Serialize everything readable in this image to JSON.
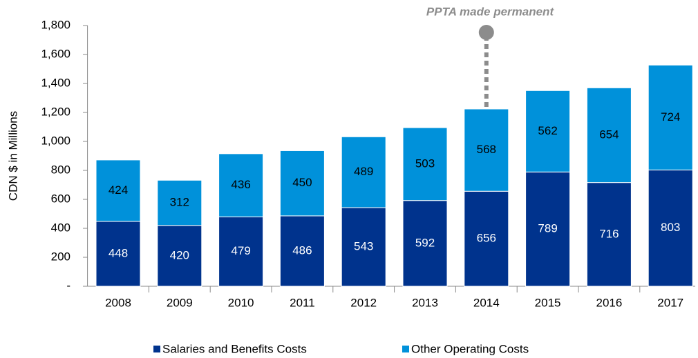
{
  "chart_data": {
    "type": "stacked_bar",
    "annotation": "PPTA made permanent",
    "y_label": "CDN $ in Millions",
    "categories": [
      "2008",
      "2009",
      "2010",
      "2011",
      "2012",
      "2013",
      "2014",
      "2015",
      "2016",
      "2017"
    ],
    "series": [
      {
        "name": "Salaries and Benefits Costs",
        "color": "#00338d",
        "values": [
          448,
          420,
          479,
          486,
          543,
          592,
          656,
          789,
          716,
          803
        ]
      },
      {
        "name": "Other Operating Costs",
        "color": "#0091da",
        "values": [
          424,
          312,
          436,
          450,
          489,
          503,
          568,
          562,
          654,
          724
        ]
      }
    ],
    "ylim": [
      0,
      1800
    ],
    "yticks": [
      {
        "value": 0,
        "label": "-"
      },
      200,
      400,
      600,
      800,
      {
        "value": 1000,
        "label": "1,000"
      },
      {
        "value": 1200,
        "label": "1,200"
      },
      {
        "value": 1400,
        "label": "1,400"
      },
      {
        "value": 1600,
        "label": "1,600"
      },
      {
        "value": 1800,
        "label": "1,800"
      }
    ]
  }
}
